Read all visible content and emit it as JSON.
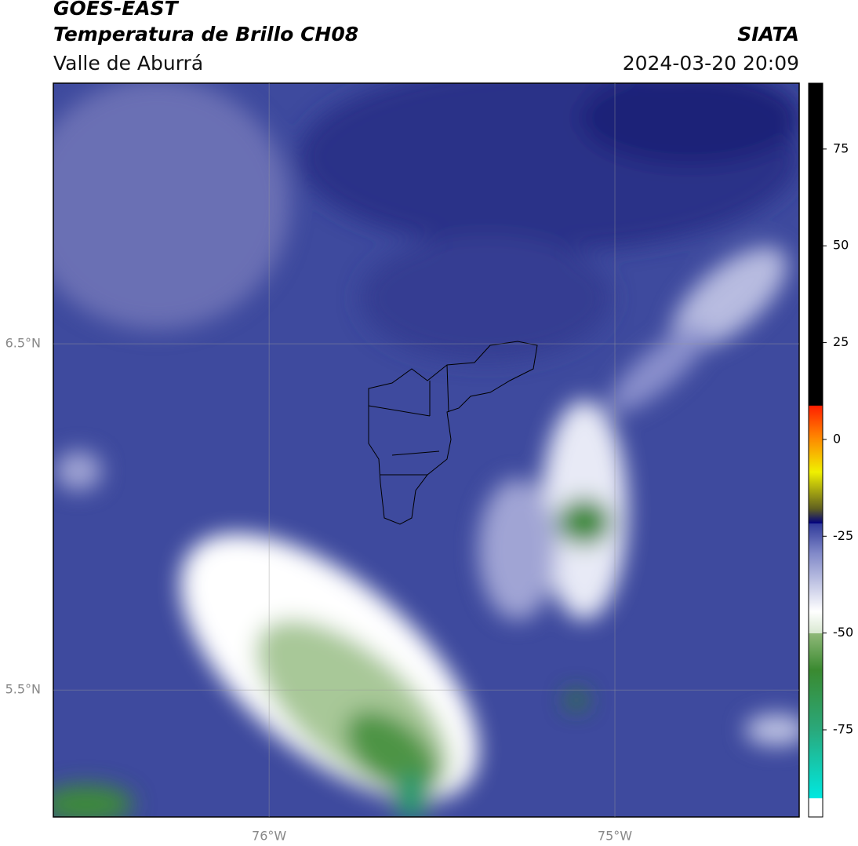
{
  "header": {
    "title": "GOES-EAST",
    "subtitle": "Temperatura de Brillo CH08",
    "source": "SIATA",
    "region": "Valle de Aburrá",
    "datetime": "2024-03-20 20:09"
  },
  "map": {
    "xlim": [
      -76.624,
      -74.467
    ],
    "ylim": [
      5.133,
      7.253
    ],
    "xticks": [
      {
        "value": -76,
        "label": "76°W"
      },
      {
        "value": -75,
        "label": "75°W"
      }
    ],
    "yticks": [
      {
        "value": 6.5,
        "label": "6.5°N"
      },
      {
        "value": 5.5,
        "label": "5.5°N"
      }
    ]
  },
  "colorbar": {
    "lim": [
      -97.5,
      92
    ],
    "ticks": [
      75,
      50,
      25,
      0,
      -25,
      -50,
      -75
    ]
  }
}
